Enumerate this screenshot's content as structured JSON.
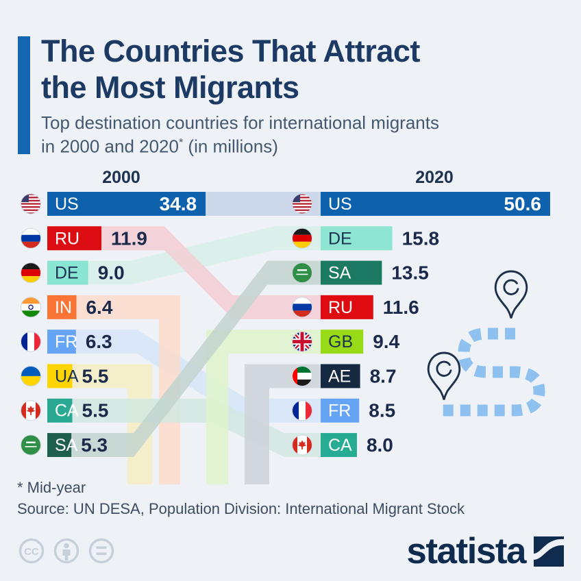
{
  "header": {
    "title_line1": "The Countries That Attract",
    "title_line2": "the Most Migrants",
    "subtitle_line1": "Top destination countries for international migrants",
    "subtitle_line2_prefix": "in 2000 and 2020",
    "subtitle_asterisk": "*",
    "subtitle_line2_suffix": " (in millions)"
  },
  "chart_data": {
    "type": "bar",
    "unit": "millions of international migrants",
    "columns": [
      {
        "label": "2000"
      },
      {
        "label": "2020"
      }
    ],
    "series": [
      {
        "name": "2000",
        "items": [
          {
            "code": "US",
            "label": "34.8",
            "value": 34.8,
            "color": "#0e61ad",
            "code_color": "#ffffff",
            "value_inside": true,
            "flag": "us"
          },
          {
            "code": "RU",
            "label": "11.9",
            "value": 11.9,
            "color": "#dc0d12",
            "code_color": "#ffffff",
            "value_inside": false,
            "flag": "ru"
          },
          {
            "code": "DE",
            "label": "9.0",
            "value": 9.0,
            "color": "#8ae5d2",
            "code_color": "#1d3150",
            "value_inside": false,
            "flag": "de"
          },
          {
            "code": "IN",
            "label": "6.4",
            "value": 6.4,
            "color": "#fa7435",
            "code_color": "#ffffff",
            "value_inside": false,
            "flag": "in"
          },
          {
            "code": "FR",
            "label": "6.3",
            "value": 6.3,
            "color": "#66a5f5",
            "code_color": "#ffffff",
            "value_inside": false,
            "flag": "fr"
          },
          {
            "code": "UA",
            "label": "5.5",
            "value": 5.5,
            "color": "#fed402",
            "code_color": "#1d3150",
            "value_inside": false,
            "flag": "ua"
          },
          {
            "code": "CA",
            "label": "5.5",
            "value": 5.5,
            "color": "#2ba892",
            "code_color": "#ffffff",
            "value_inside": false,
            "flag": "ca"
          },
          {
            "code": "SA",
            "label": "5.3",
            "value": 5.3,
            "color": "#1e5f4e",
            "code_color": "#ffffff",
            "value_inside": false,
            "flag": "sa"
          }
        ]
      },
      {
        "name": "2020",
        "items": [
          {
            "code": "US",
            "label": "50.6",
            "value": 50.6,
            "color": "#0e61ad",
            "code_color": "#ffffff",
            "value_inside": true,
            "flag": "us"
          },
          {
            "code": "DE",
            "label": "15.8",
            "value": 15.8,
            "color": "#8de5d2",
            "code_color": "#1d3150",
            "value_inside": false,
            "flag": "de"
          },
          {
            "code": "SA",
            "label": "13.5",
            "value": 13.5,
            "color": "#1d7a62",
            "code_color": "#ffffff",
            "value_inside": false,
            "flag": "sa"
          },
          {
            "code": "RU",
            "label": "11.6",
            "value": 11.6,
            "color": "#de0c11",
            "code_color": "#ffffff",
            "value_inside": false,
            "flag": "ru"
          },
          {
            "code": "GB",
            "label": "9.4",
            "value": 9.4,
            "color": "#99da17",
            "code_color": "#1d3150",
            "value_inside": false,
            "flag": "gb"
          },
          {
            "code": "AE",
            "label": "8.7",
            "value": 8.7,
            "color": "#152941",
            "code_color": "#ffffff",
            "value_inside": false,
            "flag": "ae"
          },
          {
            "code": "FR",
            "label": "8.5",
            "value": 8.5,
            "color": "#66a5f5",
            "code_color": "#ffffff",
            "value_inside": false,
            "flag": "fr"
          },
          {
            "code": "CA",
            "label": "8.0",
            "value": 8.0,
            "color": "#27ab93",
            "code_color": "#ffffff",
            "value_inside": false,
            "flag": "ca"
          }
        ]
      }
    ],
    "flows": [
      {
        "code": "US",
        "from_rank_2000": 1,
        "to_rank_2020": 1,
        "ribbon_color": "#c7d5e9"
      },
      {
        "code": "DE",
        "from_rank_2000": 3,
        "to_rank_2020": 2,
        "ribbon_color": "#d7efe9"
      },
      {
        "code": "RU",
        "from_rank_2000": 2,
        "to_rank_2020": 4,
        "ribbon_color": "#f3ced3"
      },
      {
        "code": "FR",
        "from_rank_2000": 5,
        "to_rank_2020": 7,
        "ribbon_color": "#d6e5f8"
      },
      {
        "code": "UA",
        "from_rank_2000": 6,
        "to_rank_2020": null,
        "ribbon_color": "#f5eec2"
      },
      {
        "code": "IN",
        "from_rank_2000": 4,
        "to_rank_2020": null,
        "ribbon_color": "#fcdccb"
      },
      {
        "code": "CA",
        "from_rank_2000": 7,
        "to_rank_2020": 8,
        "ribbon_color": "#d2e8e2"
      },
      {
        "code": "GB",
        "from_rank_2000": null,
        "to_rank_2020": 5,
        "ribbon_color": "#dff3cb"
      },
      {
        "code": "AE",
        "from_rank_2000": null,
        "to_rank_2020": 6,
        "ribbon_color": "#ced4db"
      },
      {
        "code": "SA",
        "from_rank_2000": 8,
        "to_rank_2020": 3,
        "ribbon_color": "#c2d4cf"
      }
    ]
  },
  "footer": {
    "footnote": "* Mid-year",
    "source": "Source: UN DESA, Population Division: International Migrant Stock",
    "brand": "statista",
    "license_icons": [
      "cc-icon",
      "attribution-person-icon",
      "equals-icon"
    ]
  },
  "colors": {
    "background": "#eef2f7",
    "accent": "#1266b2",
    "title_text": "#1c3a64",
    "subtitle_text": "#44596f",
    "value_text": "#1b2a4a",
    "route_dash": "#8fc1f0",
    "pin_outline": "#1e3049",
    "license_gray": "#c7cfda",
    "brand_navy": "#0f2b4d"
  }
}
